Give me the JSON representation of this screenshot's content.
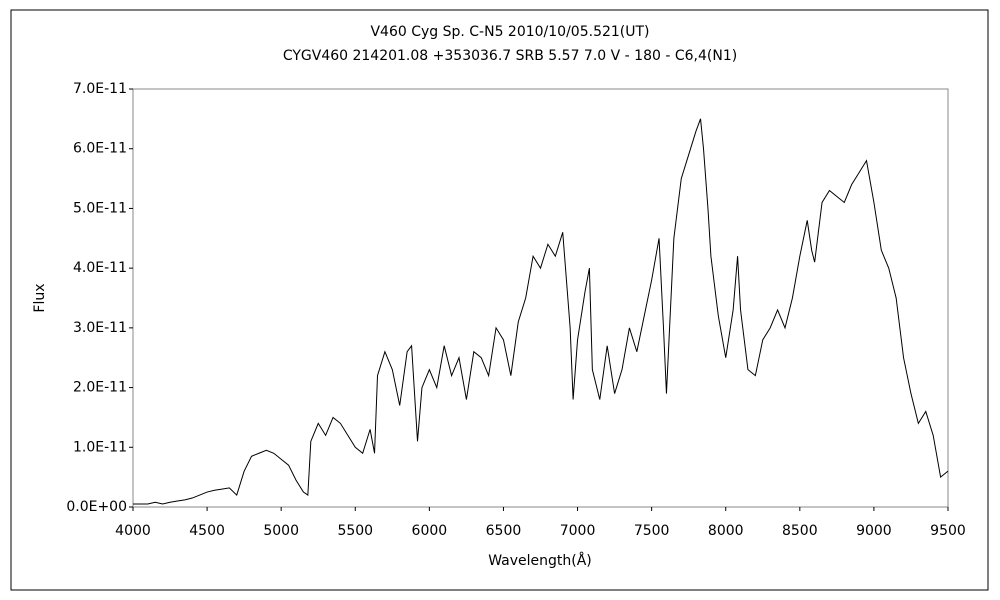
{
  "chart_data": {
    "type": "line",
    "title": "V460 Cyg    Sp. C-N5    2010/10/05.521(UT)",
    "subtitle": "CYGV460 214201.08 +353036.7 SRB 5.57 7.0 V - 180 - C6,4(N1)",
    "x_label": "Wavelength(Å)",
    "y_label": "Flux",
    "x": [
      4000,
      4050,
      4100,
      4150,
      4200,
      4250,
      4300,
      4350,
      4400,
      4450,
      4500,
      4550,
      4600,
      4650,
      4700,
      4750,
      4800,
      4850,
      4900,
      4950,
      5000,
      5050,
      5100,
      5150,
      5180,
      5200,
      5250,
      5300,
      5350,
      5400,
      5450,
      5500,
      5550,
      5600,
      5630,
      5650,
      5700,
      5750,
      5800,
      5850,
      5880,
      5920,
      5950,
      6000,
      6050,
      6100,
      6150,
      6200,
      6250,
      6300,
      6350,
      6400,
      6450,
      6500,
      6550,
      6600,
      6650,
      6700,
      6750,
      6800,
      6850,
      6900,
      6950,
      6970,
      7000,
      7050,
      7080,
      7100,
      7150,
      7200,
      7250,
      7300,
      7350,
      7400,
      7450,
      7500,
      7550,
      7580,
      7600,
      7650,
      7700,
      7750,
      7800,
      7830,
      7850,
      7880,
      7900,
      7950,
      8000,
      8050,
      8080,
      8100,
      8150,
      8200,
      8250,
      8300,
      8350,
      8400,
      8450,
      8500,
      8550,
      8580,
      8600,
      8650,
      8700,
      8750,
      8800,
      8850,
      8900,
      8950,
      9000,
      9050,
      9100,
      9150,
      9200,
      9250,
      9300,
      9350,
      9400,
      9450,
      9500
    ],
    "series": [
      {
        "name": "Flux",
        "color": "#000000",
        "values": [
          5e-13,
          5e-13,
          5e-13,
          8e-13,
          5e-13,
          8e-13,
          1e-12,
          1.2e-12,
          1.5e-12,
          2e-12,
          2.5e-12,
          2.8e-12,
          3e-12,
          3.2e-12,
          2e-12,
          6e-12,
          8.5e-12,
          9e-12,
          9.5e-12,
          9e-12,
          8e-12,
          7e-12,
          4.5e-12,
          2.5e-12,
          2e-12,
          1.1e-11,
          1.4e-11,
          1.2e-11,
          1.5e-11,
          1.4e-11,
          1.2e-11,
          1e-11,
          9e-12,
          1.3e-11,
          9e-12,
          2.2e-11,
          2.6e-11,
          2.3e-11,
          1.7e-11,
          2.6e-11,
          2.7e-11,
          1.1e-11,
          2e-11,
          2.3e-11,
          2e-11,
          2.7e-11,
          2.2e-11,
          2.5e-11,
          1.8e-11,
          2.6e-11,
          2.5e-11,
          2.2e-11,
          3e-11,
          2.8e-11,
          2.2e-11,
          3.1e-11,
          3.5e-11,
          4.2e-11,
          4e-11,
          4.4e-11,
          4.2e-11,
          4.6e-11,
          3e-11,
          1.8e-11,
          2.8e-11,
          3.6e-11,
          4e-11,
          2.3e-11,
          1.8e-11,
          2.7e-11,
          1.9e-11,
          2.3e-11,
          3e-11,
          2.6e-11,
          3.2e-11,
          3.8e-11,
          4.5e-11,
          3e-11,
          1.9e-11,
          4.5e-11,
          5.5e-11,
          5.9e-11,
          6.3e-11,
          6.5e-11,
          6e-11,
          5e-11,
          4.2e-11,
          3.2e-11,
          2.5e-11,
          3.3e-11,
          4.2e-11,
          3.3e-11,
          2.3e-11,
          2.2e-11,
          2.8e-11,
          3e-11,
          3.3e-11,
          3e-11,
          3.5e-11,
          4.2e-11,
          4.8e-11,
          4.3e-11,
          4.1e-11,
          5.1e-11,
          5.3e-11,
          5.2e-11,
          5.1e-11,
          5.4e-11,
          5.6e-11,
          5.8e-11,
          5.1e-11,
          4.3e-11,
          4e-11,
          3.5e-11,
          2.5e-11,
          1.9e-11,
          1.4e-11,
          1.6e-11,
          1.2e-11,
          5e-12,
          6e-12
        ]
      }
    ],
    "xlim": [
      4000,
      9500
    ],
    "xticks": [
      4000,
      4500,
      5000,
      5500,
      6000,
      6500,
      7000,
      7500,
      8000,
      8500,
      9000,
      9500
    ],
    "ylim": [
      0,
      7e-11
    ],
    "yticks": [
      {
        "value": 0,
        "label": "0.0E+00"
      },
      {
        "value": 1e-11,
        "label": "1.0E-11"
      },
      {
        "value": 2e-11,
        "label": "2.0E-11"
      },
      {
        "value": 3e-11,
        "label": "3.0E-11"
      },
      {
        "value": 4e-11,
        "label": "4.0E-11"
      },
      {
        "value": 5e-11,
        "label": "5.0E-11"
      },
      {
        "value": 6e-11,
        "label": "6.0E-11"
      },
      {
        "value": 7e-11,
        "label": "7.0E-11"
      }
    ],
    "grid": false
  }
}
